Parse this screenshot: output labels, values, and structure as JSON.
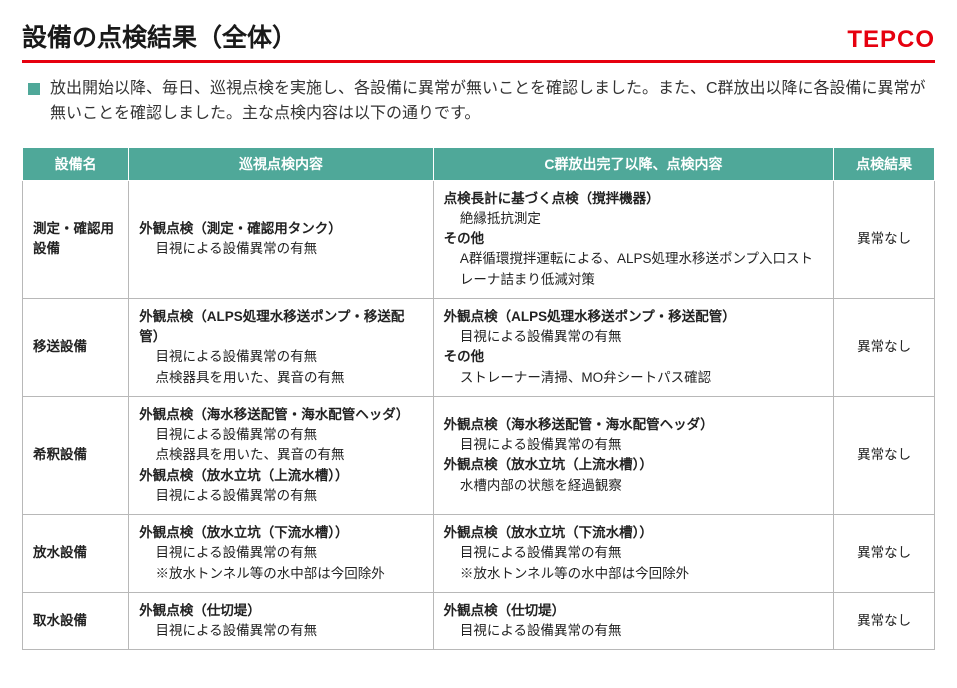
{
  "title": "設備の点検結果（全体）",
  "logo": "TEPCO",
  "intro": "放出開始以降、毎日、巡視点検を実施し、各設備に異常が無いことを確認しました。また、C群放出以降に各設備に異常が無いことを確認しました。主な点検内容は以下の通りです。",
  "columns": {
    "c1": "設備名",
    "c2": "巡視点検内容",
    "c3": "C群放出完了以降、点検内容",
    "c4": "点検結果"
  },
  "rows": [
    {
      "name": "測定・確認用設備",
      "patrol": {
        "h1": "外観点検（測定・確認用タンク）",
        "l1": "目視による設備異常の有無"
      },
      "cgroup": {
        "h1": "点検長計に基づく点検（撹拌機器）",
        "l1": "絶縁抵抗測定",
        "h2": "その他",
        "l2": "A群循環撹拌運転による、ALPS処理水移送ポンプ入口ストレーナ詰まり低減対策"
      },
      "result": "異常なし"
    },
    {
      "name": "移送設備",
      "patrol": {
        "h1": "外観点検（ALPS処理水移送ポンプ・移送配管）",
        "l1": "目視による設備異常の有無",
        "l2": "点検器具を用いた、異音の有無"
      },
      "cgroup": {
        "h1": "外観点検（ALPS処理水移送ポンプ・移送配管）",
        "l1": "目視による設備異常の有無",
        "h2": "その他",
        "l2": "ストレーナー清掃、MO弁シートパス確認"
      },
      "result": "異常なし"
    },
    {
      "name": "希釈設備",
      "patrol": {
        "h1": "外観点検（海水移送配管・海水配管ヘッダ）",
        "l1": "目視による設備異常の有無",
        "l2": "点検器具を用いた、異音の有無",
        "h2": "外観点検（放水立坑（上流水槽））",
        "l3": "目視による設備異常の有無"
      },
      "cgroup": {
        "h1": "外観点検（海水移送配管・海水配管ヘッダ）",
        "l1": "目視による設備異常の有無",
        "h2": "外観点検（放水立坑（上流水槽））",
        "l2": "水槽内部の状態を経過観察"
      },
      "result": "異常なし"
    },
    {
      "name": "放水設備",
      "patrol": {
        "h1": "外観点検（放水立坑（下流水槽））",
        "l1": "目視による設備異常の有無",
        "l2": "※放水トンネル等の水中部は今回除外"
      },
      "cgroup": {
        "h1": "外観点検（放水立坑（下流水槽））",
        "l1": "目視による設備異常の有無",
        "l2": "※放水トンネル等の水中部は今回除外"
      },
      "result": "異常なし"
    },
    {
      "name": "取水設備",
      "patrol": {
        "h1": "外観点検（仕切堤）",
        "l1": "目視による設備異常の有無"
      },
      "cgroup": {
        "h1": "外観点検（仕切堤）",
        "l1": "目視による設備異常の有無"
      },
      "result": "異常なし"
    }
  ]
}
